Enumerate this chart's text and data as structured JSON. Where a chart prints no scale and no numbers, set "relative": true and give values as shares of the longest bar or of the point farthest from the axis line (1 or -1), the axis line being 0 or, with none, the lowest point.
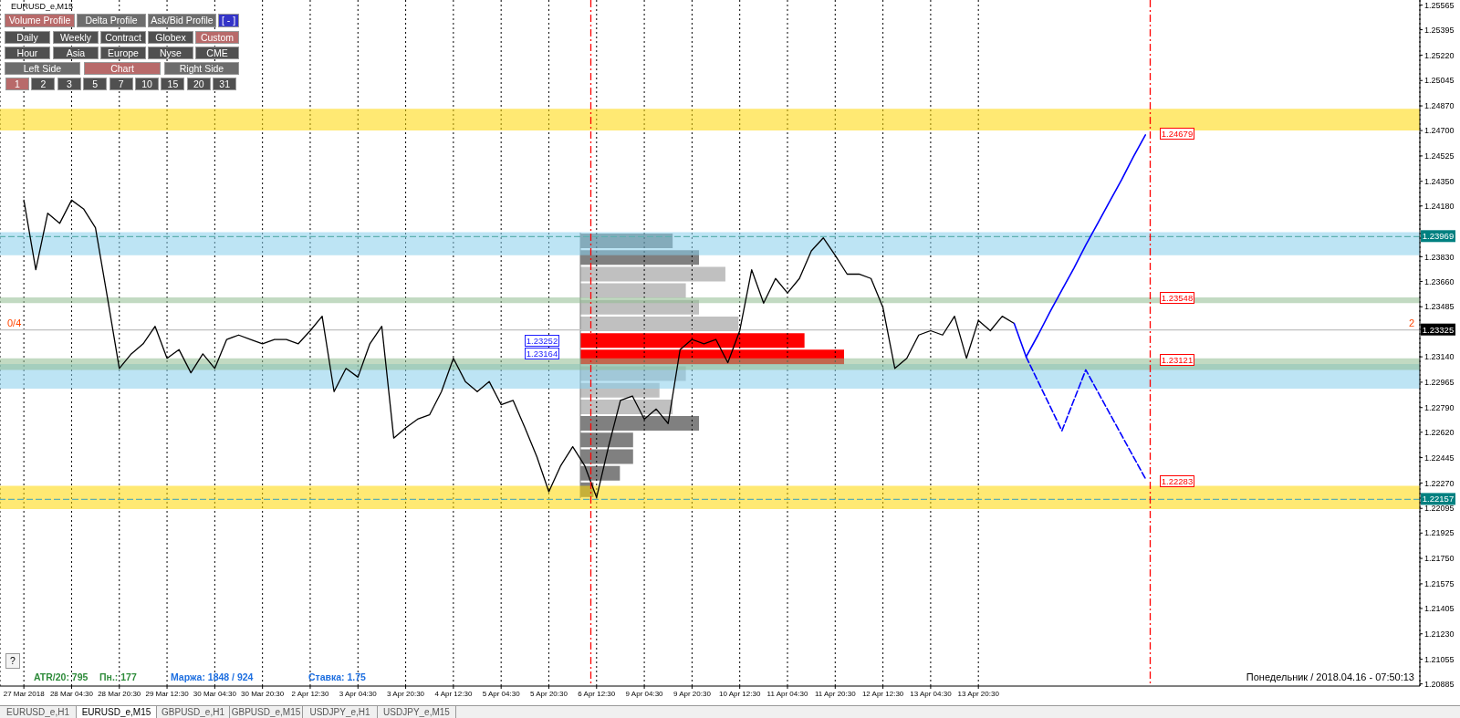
{
  "chart_data": [
    {
      "type": "line",
      "grid": "x",
      "legend": false,
      "marker": "none",
      "ylim": [
        1.2087,
        1.256
      ],
      "categories": [
        "27 Mar 2018",
        null,
        null,
        null,
        "28 Mar 04:30",
        null,
        null,
        null,
        "28 Mar 20:30",
        null,
        null,
        null,
        "29 Mar 12:30",
        null,
        null,
        null,
        "30 Mar 04:30",
        null,
        null,
        null,
        "30 Mar 20:30",
        null,
        null,
        null,
        "2 Apr 12:30",
        null,
        null,
        null,
        "3 Apr 04:30",
        null,
        null,
        null,
        "3 Apr 20:30",
        null,
        null,
        null,
        "4 Apr 12:30",
        null,
        null,
        null,
        "5 Apr 04:30",
        null,
        null,
        null,
        "5 Apr 20:30",
        null,
        null,
        null,
        "6 Apr 12:30",
        null,
        null,
        null,
        "9 Apr 04:30",
        null,
        null,
        null,
        "9 Apr 20:30",
        null,
        null,
        null,
        "10 Apr 12:30",
        null,
        null,
        null,
        "11 Apr 04:30",
        null,
        null,
        null,
        "11 Apr 20:30",
        null,
        null,
        null,
        "12 Apr 12:30",
        null,
        null,
        null,
        "13 Apr 04:30",
        null,
        null,
        null,
        "13 Apr 20:30",
        null,
        null,
        null,
        null,
        null,
        null,
        null,
        null,
        null,
        null,
        null,
        null,
        null,
        null,
        null,
        null,
        null,
        null,
        null,
        null,
        null,
        null,
        null,
        null,
        null,
        null,
        null,
        null,
        null,
        null,
        null,
        null,
        null,
        null,
        null,
        null,
        null
      ],
      "yticks": [
        1.25565,
        1.25395,
        {
          "value": 1.2522,
          "label": "1.25220"
        },
        1.25045,
        {
          "value": 1.2487,
          "label": "1.24870"
        },
        {
          "value": 1.247,
          "label": "1.24700"
        },
        1.24525,
        {
          "value": 1.2435,
          "label": "1.24350"
        },
        {
          "value": 1.2418,
          "label": "1.24180"
        },
        {
          "value": 1.2383,
          "label": "1.23830"
        },
        {
          "value": 1.2366,
          "label": "1.23660"
        },
        1.23485,
        {
          "value": 1.2314,
          "label": "1.23140"
        },
        1.22965,
        {
          "value": 1.2279,
          "label": "1.22790"
        },
        {
          "value": 1.2262,
          "label": "1.22620"
        },
        1.22445,
        {
          "value": 1.2227,
          "label": "1.22270"
        },
        1.22095,
        1.21925,
        {
          "value": 1.2175,
          "label": "1.21750"
        },
        1.21575,
        1.21405,
        {
          "value": 1.2123,
          "label": "1.21230"
        },
        1.21055,
        1.20885
      ],
      "series": [
        {
          "color": "#000000",
          "values": [
            1.2422,
            1.2374,
            1.2413,
            1.2406,
            1.2422,
            1.2416,
            1.2403,
            1.2355,
            1.2306,
            1.2316,
            1.2323,
            1.2335,
            1.2313,
            1.2319,
            1.2303,
            1.2316,
            1.2306,
            1.2326,
            1.2329,
            1.2326,
            1.2323,
            1.2326,
            1.2326,
            1.2323,
            1.2332,
            1.2342,
            1.229,
            1.2306,
            1.23,
            1.2323,
            1.2335,
            1.2258,
            1.2265,
            1.2271,
            1.2274,
            1.229,
            1.2313,
            1.2297,
            1.229,
            1.2297,
            1.2281,
            1.2284,
            1.2265,
            1.2245,
            1.2221,
            1.2239,
            1.2252,
            1.2239,
            1.2217,
            1.2252,
            1.2284,
            1.2287,
            1.2271,
            1.2278,
            1.2268,
            1.2319,
            1.2326,
            1.2323,
            1.2326,
            1.231,
            1.2332,
            1.2374,
            1.2351,
            1.2368,
            1.2358,
            1.2368,
            1.2387,
            1.2396,
            1.2384,
            1.2371,
            1.2371,
            1.2368,
            1.2348,
            1.2306,
            1.2313,
            1.2329,
            1.2332,
            1.2329,
            1.2342,
            1.2313,
            1.2339,
            1.2332,
            1.2342,
            1.2337,
            null,
            null,
            null,
            null,
            null,
            null,
            null,
            null,
            null,
            null,
            null,
            null,
            null,
            null,
            null,
            null,
            null,
            null,
            null,
            null,
            null,
            null,
            null,
            null,
            null,
            null,
            null,
            null,
            null,
            null,
            null,
            null,
            null,
            null
          ]
        },
        {
          "color": "#0000ff",
          "values": [
            null,
            null,
            null,
            null,
            null,
            null,
            null,
            null,
            null,
            null,
            null,
            null,
            null,
            null,
            null,
            null,
            null,
            null,
            null,
            null,
            null,
            null,
            null,
            null,
            null,
            null,
            null,
            null,
            null,
            null,
            null,
            null,
            null,
            null,
            null,
            null,
            null,
            null,
            null,
            null,
            null,
            null,
            null,
            null,
            null,
            null,
            null,
            null,
            null,
            null,
            null,
            null,
            null,
            null,
            null,
            null,
            null,
            null,
            null,
            null,
            null,
            null,
            null,
            null,
            null,
            null,
            null,
            null,
            null,
            null,
            null,
            null,
            null,
            null,
            null,
            null,
            null,
            null,
            null,
            null,
            null,
            null,
            null,
            1.2337,
            1.2314,
            1.2329,
            1.2345,
            1.236,
            1.2375,
            1.2391,
            1.2406,
            1.2421,
            1.2436,
            1.2452,
            1.2467,
            null,
            null,
            null,
            null,
            null,
            null,
            null,
            null,
            null,
            null,
            null,
            null,
            null,
            null,
            null,
            null,
            null,
            null,
            null,
            null,
            null,
            null,
            null
          ]
        },
        {
          "color": "#0000ff",
          "line_style": "dashed",
          "values": [
            null,
            null,
            null,
            null,
            null,
            null,
            null,
            null,
            null,
            null,
            null,
            null,
            null,
            null,
            null,
            null,
            null,
            null,
            null,
            null,
            null,
            null,
            null,
            null,
            null,
            null,
            null,
            null,
            null,
            null,
            null,
            null,
            null,
            null,
            null,
            null,
            null,
            null,
            null,
            null,
            null,
            null,
            null,
            null,
            null,
            null,
            null,
            null,
            null,
            null,
            null,
            null,
            null,
            null,
            null,
            null,
            null,
            null,
            null,
            null,
            null,
            null,
            null,
            null,
            null,
            null,
            null,
            null,
            null,
            null,
            null,
            null,
            null,
            null,
            null,
            null,
            null,
            null,
            null,
            null,
            null,
            null,
            null,
            null,
            1.2314,
            1.2297,
            1.228,
            1.2263,
            1.2284,
            1.2305,
            1.229,
            1.2275,
            1.226,
            1.2245,
            1.223,
            null,
            null,
            null,
            null,
            null,
            null,
            null,
            null,
            null,
            null,
            null,
            null,
            null,
            null,
            null,
            null,
            null,
            null,
            null,
            null,
            null,
            null,
            null
          ]
        }
      ],
      "bands": [
        {
          "axis": "y",
          "from": 1.247,
          "to": 1.2485,
          "color": "#ffd700"
        },
        {
          "axis": "y",
          "from": 1.2209,
          "to": 1.2225,
          "color": "#ffd700"
        },
        {
          "axis": "y",
          "from": 1.2384,
          "to": 1.24,
          "color": "#87ceeb"
        },
        {
          "axis": "y",
          "from": 1.2292,
          "to": 1.2309,
          "color": "#87ceeb"
        },
        {
          "axis": "y",
          "from": 1.2351,
          "to": 1.2355,
          "color": "#8fbc8f"
        },
        {
          "axis": "y",
          "from": 1.2305,
          "to": 1.2313,
          "color": "#8fbc8f"
        }
      ],
      "ref_lines": [
        {
          "axis": "y",
          "value": 1.23969,
          "label": "1.23969",
          "color": "#5fb0b0",
          "line_style": "dashed"
        },
        {
          "axis": "y",
          "value": 1.22157,
          "label": "1.22157",
          "color": "#5fb0b0",
          "line_style": "dashed"
        },
        {
          "axis": "y",
          "value": 1.23325,
          "label": "1.23325",
          "color": "#c0c0c0",
          "line_style": "solid"
        }
      ],
      "annotations": [
        {
          "text": "1.23252",
          "y": 1.23252
        },
        {
          "text": "1.23164",
          "y": 1.23164
        },
        {
          "text": "1.24679",
          "y": 1.24679
        },
        {
          "text": "1.23548",
          "y": 1.23548
        },
        {
          "text": "1.23121",
          "y": 1.23121
        },
        {
          "text": "1.22283",
          "y": 1.22283
        },
        "EURUSD_e,M15",
        "Volume Profile",
        "Delta Profile",
        "Ask/Bid Profile",
        "[ - ]",
        "Daily",
        "Weekly",
        "Contract",
        "Globex",
        "Custom",
        "Hour",
        "Asia",
        "Europe",
        "Nyse",
        "CME",
        "Left Side",
        "Chart",
        "Right Side",
        "1",
        "2",
        "3",
        "5",
        "7",
        "10",
        "15",
        "20",
        "31",
        "0/4",
        "2",
        "ATR/20: 795",
        "Пн.: 177",
        "Маржа: 1848 / 924",
        "Ставка: 1.75",
        "Понедельник / 2018.04.16 - 07:50:13",
        "?",
        "EURUSD_e,H1",
        "EURUSD_e,M15",
        "GBPUSD_e,H1",
        "GBPUSD_e,M15",
        "USDJPY_e,H1",
        "USDJPY_e,M15"
      ]
    },
    {
      "type": "bar",
      "orientation": "horizontal",
      "relative": true,
      "categories": [
        null,
        null,
        null,
        null,
        null,
        null,
        null,
        null,
        null,
        null,
        null,
        null,
        null,
        null,
        null,
        null
      ],
      "values": [
        0.35,
        0.45,
        0.55,
        0.4,
        0.45,
        0.6,
        0.85,
        1,
        0.4,
        0.3,
        0.35,
        0.45,
        0.2,
        0.2,
        0.15,
        0.05
      ],
      "colors": [
        "#808080",
        "#808080",
        "#c0c0c0",
        "#c0c0c0",
        "#c0c0c0",
        "#c0c0c0",
        "#ff0000",
        "#ff0000",
        "#c0c0c0",
        "#c0c0c0",
        "#c0c0c0",
        "#808080",
        "#808080",
        "#808080",
        "#808080",
        "#808080"
      ]
    }
  ]
}
